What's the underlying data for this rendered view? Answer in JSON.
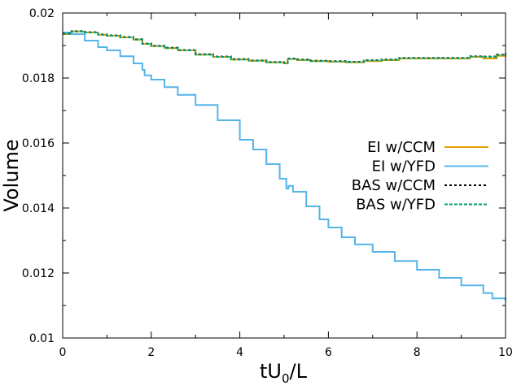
{
  "chart_data": {
    "type": "line",
    "title": "",
    "xlabel": "tU",
    "xlabel_subscript": "0",
    "xlabel_suffix": "/L",
    "ylabel": "Volume",
    "xlim": [
      0,
      10
    ],
    "ylim": [
      0.01,
      0.02
    ],
    "xticks": [
      0,
      2,
      4,
      6,
      8,
      10
    ],
    "xtick_labels": [
      "0",
      "2",
      "4",
      "6",
      "8",
      "10"
    ],
    "yticks": [
      0.01,
      0.012,
      0.014,
      0.016,
      0.018,
      0.02
    ],
    "ytick_labels": [
      "0.01",
      "0.012",
      "0.014",
      "0.016",
      "0.018",
      "0.02"
    ],
    "grid": false,
    "legend_position": "right",
    "series": [
      {
        "name": "EI w/CCM",
        "color": "#e69f00",
        "dash": "solid",
        "x": [
          0,
          0.2,
          0.5,
          0.8,
          1.0,
          1.3,
          1.6,
          1.8,
          2.0,
          2.3,
          2.6,
          3.0,
          3.4,
          3.8,
          4.2,
          4.6,
          5.0,
          5.08,
          5.3,
          5.6,
          6.0,
          6.4,
          6.8,
          7.2,
          7.6,
          8.0,
          8.4,
          8.8,
          9.2,
          9.5,
          9.8,
          10.0
        ],
        "y": [
          0.01935,
          0.01943,
          0.0194,
          0.01933,
          0.0193,
          0.01925,
          0.01918,
          0.01905,
          0.01898,
          0.01892,
          0.01885,
          0.01872,
          0.01865,
          0.01857,
          0.01853,
          0.01848,
          0.01845,
          0.01858,
          0.01855,
          0.01852,
          0.0185,
          0.01848,
          0.01852,
          0.01855,
          0.0186,
          0.0186,
          0.0186,
          0.0186,
          0.01865,
          0.0186,
          0.01868,
          0.01875
        ]
      },
      {
        "name": "EI w/YFD",
        "color": "#56b4e9",
        "dash": "solid",
        "x": [
          0,
          0.2,
          0.5,
          0.8,
          1.0,
          1.3,
          1.6,
          1.8,
          1.85,
          2.0,
          2.3,
          2.6,
          3.0,
          3.5,
          4.0,
          4.3,
          4.6,
          4.9,
          5.05,
          5.1,
          5.2,
          5.5,
          5.8,
          6.0,
          6.3,
          6.6,
          7.0,
          7.5,
          8.0,
          8.5,
          9.0,
          9.5,
          9.7,
          10.0
        ],
        "y": [
          0.0194,
          0.01935,
          0.01915,
          0.01895,
          0.01885,
          0.01867,
          0.01845,
          0.01825,
          0.01808,
          0.01795,
          0.01772,
          0.01748,
          0.01717,
          0.0167,
          0.0161,
          0.0158,
          0.01535,
          0.0149,
          0.0146,
          0.01468,
          0.0145,
          0.01405,
          0.01365,
          0.0134,
          0.0131,
          0.01288,
          0.01265,
          0.01237,
          0.0121,
          0.01185,
          0.01162,
          0.01138,
          0.01122,
          0.01115
        ]
      },
      {
        "name": "BAS w/CCM",
        "color": "#000000",
        "dash": "dotted",
        "x": [
          0,
          0.2,
          0.5,
          0.8,
          1.0,
          1.3,
          1.6,
          1.8,
          2.0,
          2.3,
          2.6,
          3.0,
          3.4,
          3.8,
          4.2,
          4.6,
          5.0,
          5.08,
          5.3,
          5.6,
          6.0,
          6.4,
          6.8,
          7.2,
          7.6,
          8.0,
          8.4,
          8.8,
          9.2,
          9.5,
          9.8,
          10.0
        ],
        "y": [
          0.01937,
          0.01944,
          0.01941,
          0.01934,
          0.01931,
          0.01926,
          0.01919,
          0.01906,
          0.01899,
          0.01893,
          0.01886,
          0.01873,
          0.01866,
          0.01858,
          0.01854,
          0.01849,
          0.01846,
          0.0186,
          0.01857,
          0.01853,
          0.01852,
          0.0185,
          0.01855,
          0.01857,
          0.01862,
          0.01862,
          0.01862,
          0.01862,
          0.01867,
          0.01866,
          0.01872,
          0.01877
        ]
      },
      {
        "name": "BAS w/YFD",
        "color": "#009e73",
        "dash": "dashed",
        "x": [
          0,
          0.2,
          0.5,
          0.8,
          1.0,
          1.3,
          1.6,
          1.8,
          2.0,
          2.3,
          2.6,
          3.0,
          3.4,
          3.8,
          4.2,
          4.6,
          5.0,
          5.08,
          5.3,
          5.6,
          6.0,
          6.4,
          6.8,
          7.2,
          7.6,
          8.0,
          8.4,
          8.8,
          9.2,
          9.5,
          9.8,
          10.0
        ],
        "y": [
          0.01936,
          0.01943,
          0.0194,
          0.01933,
          0.0193,
          0.01925,
          0.01918,
          0.01905,
          0.01898,
          0.01892,
          0.01885,
          0.01872,
          0.01865,
          0.01857,
          0.01853,
          0.01848,
          0.01845,
          0.01859,
          0.01856,
          0.01852,
          0.01851,
          0.01849,
          0.01854,
          0.01856,
          0.01861,
          0.01861,
          0.01861,
          0.01861,
          0.01866,
          0.01865,
          0.01871,
          0.01876
        ]
      }
    ]
  }
}
